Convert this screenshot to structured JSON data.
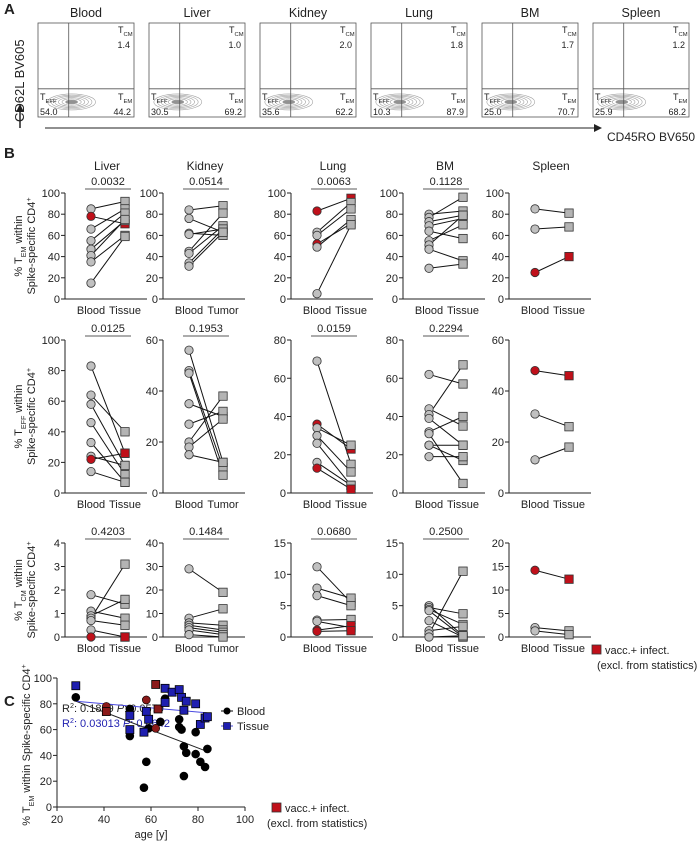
{
  "panel_labels": {
    "a": "A",
    "b": "B",
    "c": "C"
  },
  "colors": {
    "blood_point": "#c0c0c0",
    "tissue_point": "#b4b4b4",
    "excluded_point": "#c0101a",
    "blood_c": "#000000",
    "tissue_c": "#1f1fb0",
    "tissue_c_line": "#4a4ae0"
  },
  "panel_a": {
    "y_axis_label": "CD62L BV605",
    "x_axis_label": "CD45RO BV650",
    "quadrant_labels": {
      "tcm": [
        "T",
        "CM"
      ],
      "teff": [
        "T",
        "EFF"
      ],
      "tem": [
        "T",
        "EM"
      ]
    },
    "plots": [
      {
        "title": "Blood",
        "tcm": "1.4",
        "teff": "54.0",
        "tem": "44.2"
      },
      {
        "title": "Liver",
        "tcm": "1.0",
        "teff": "30.5",
        "tem": "69.2"
      },
      {
        "title": "Kidney",
        "tcm": "2.0",
        "teff": "35.6",
        "tem": "62.2"
      },
      {
        "title": "Lung",
        "tcm": "1.8",
        "teff": "10.3",
        "tem": "87.9"
      },
      {
        "title": "BM",
        "tcm": "1.7",
        "teff": "25.0",
        "tem": "70.7"
      },
      {
        "title": "Spleen",
        "tcm": "1.2",
        "teff": "25.9",
        "tem": "68.2"
      }
    ]
  },
  "panel_b": {
    "column_titles": [
      "Liver",
      "Kidney",
      "Lung",
      "BM",
      "Spleen"
    ],
    "row_labels": [
      {
        "pre": "% T",
        "sub": "EM",
        "post": " within",
        "line2": "Spike-specific CD4",
        "sup": "+"
      },
      {
        "pre": "% T",
        "sub": "EFF",
        "post": " within",
        "line2": "Spike-specific CD4",
        "sup": "+"
      },
      {
        "pre": "% T",
        "sub": "CM",
        "post": " within",
        "line2": "Spike-specific CD4",
        "sup": "+"
      }
    ],
    "legend": {
      "label": "vacc.+ infect.",
      "note": "(excl. from statistics)"
    }
  },
  "chart_data": [
    {
      "type": "paired-dot",
      "row": 0,
      "col": 0,
      "categories": [
        "Blood",
        "Tissue"
      ],
      "p_value": "0.0032",
      "ylim": [
        0,
        100
      ],
      "yticks": [
        0,
        20,
        40,
        60,
        80,
        100
      ],
      "pairs": [
        [
          85,
          92,
          false
        ],
        [
          78,
          71,
          true
        ],
        [
          66,
          85,
          false
        ],
        [
          55,
          81,
          false
        ],
        [
          47,
          74,
          false
        ],
        [
          41,
          75,
          false
        ],
        [
          35,
          60,
          false
        ],
        [
          15,
          59,
          false
        ]
      ]
    },
    {
      "type": "paired-dot",
      "row": 0,
      "col": 1,
      "categories": [
        "Blood",
        "Tumor"
      ],
      "p_value": "0.0514",
      "ylim": [
        0,
        100
      ],
      "yticks": [
        0,
        20,
        40,
        60,
        80,
        100
      ],
      "pairs": [
        [
          84,
          88,
          false
        ],
        [
          76,
          63,
          false
        ],
        [
          62,
          60,
          false
        ],
        [
          61,
          66,
          false
        ],
        [
          45,
          81,
          false
        ],
        [
          43,
          69,
          false
        ],
        [
          34,
          66,
          false
        ],
        [
          31,
          63,
          false
        ]
      ]
    },
    {
      "type": "paired-dot",
      "row": 0,
      "col": 2,
      "categories": [
        "Blood",
        "Tissue"
      ],
      "p_value": "0.0063",
      "ylim": [
        0,
        100
      ],
      "yticks": [
        0,
        20,
        40,
        60,
        80,
        100
      ],
      "pairs": [
        [
          83,
          95,
          true
        ],
        [
          63,
          91,
          false
        ],
        [
          60,
          85,
          false
        ],
        [
          52,
          71,
          true
        ],
        [
          49,
          75,
          false
        ],
        [
          5,
          70,
          false
        ]
      ]
    },
    {
      "type": "paired-dot",
      "row": 0,
      "col": 3,
      "categories": [
        "Blood",
        "Tissue"
      ],
      "p_value": "0.1128",
      "ylim": [
        0,
        100
      ],
      "yticks": [
        0,
        20,
        40,
        60,
        80,
        100
      ],
      "pairs": [
        [
          80,
          83,
          false
        ],
        [
          77,
          96,
          false
        ],
        [
          73,
          79,
          false
        ],
        [
          69,
          76,
          false
        ],
        [
          64,
          57,
          false
        ],
        [
          55,
          70,
          false
        ],
        [
          51,
          79,
          false
        ],
        [
          47,
          36,
          false
        ],
        [
          29,
          33,
          false
        ]
      ]
    },
    {
      "type": "paired-dot",
      "row": 0,
      "col": 4,
      "categories": [
        "Blood",
        "Tissue"
      ],
      "p_value": "",
      "ylim": [
        0,
        100
      ],
      "yticks": [
        0,
        20,
        40,
        60,
        80,
        100
      ],
      "pairs": [
        [
          85,
          81,
          false
        ],
        [
          66,
          68,
          false
        ],
        [
          25,
          40,
          true
        ]
      ]
    },
    {
      "type": "paired-dot",
      "row": 1,
      "col": 0,
      "categories": [
        "Blood",
        "Tissue"
      ],
      "p_value": "0.0125",
      "ylim": [
        0,
        100
      ],
      "yticks": [
        0,
        20,
        40,
        60,
        80,
        100
      ],
      "pairs": [
        [
          83,
          26,
          false
        ],
        [
          64,
          40,
          false
        ],
        [
          58,
          18,
          false
        ],
        [
          46,
          12,
          false
        ],
        [
          33,
          7,
          false
        ],
        [
          24,
          18,
          false
        ],
        [
          22,
          26,
          true
        ],
        [
          14,
          7,
          false
        ]
      ]
    },
    {
      "type": "paired-dot",
      "row": 1,
      "col": 1,
      "categories": [
        "Blood",
        "Tumor"
      ],
      "p_value": "0.1953",
      "ylim": [
        0,
        60
      ],
      "yticks": [
        0,
        20,
        40,
        60
      ],
      "pairs": [
        [
          56,
          12,
          false
        ],
        [
          48,
          10,
          false
        ],
        [
          47,
          7,
          false
        ],
        [
          35,
          30,
          false
        ],
        [
          27,
          32,
          false
        ],
        [
          20,
          38,
          false
        ],
        [
          18,
          29,
          false
        ],
        [
          15,
          12,
          false
        ]
      ]
    },
    {
      "type": "paired-dot",
      "row": 1,
      "col": 2,
      "categories": [
        "Blood",
        "Tissue"
      ],
      "p_value": "0.0159",
      "ylim": [
        0,
        80
      ],
      "yticks": [
        0,
        20,
        40,
        60,
        80
      ],
      "pairs": [
        [
          69,
          15,
          false
        ],
        [
          36,
          23,
          true
        ],
        [
          34,
          25,
          false
        ],
        [
          30,
          11,
          false
        ],
        [
          26,
          4,
          false
        ],
        [
          16,
          4,
          false
        ],
        [
          13,
          2,
          true
        ]
      ]
    },
    {
      "type": "paired-dot",
      "row": 1,
      "col": 3,
      "categories": [
        "Blood",
        "Tissue"
      ],
      "p_value": "0.2294",
      "ylim": [
        0,
        80
      ],
      "yticks": [
        0,
        20,
        40,
        60,
        80
      ],
      "pairs": [
        [
          62,
          57,
          false
        ],
        [
          44,
          35,
          false
        ],
        [
          41,
          67,
          false
        ],
        [
          39,
          25,
          false
        ],
        [
          32,
          40,
          false
        ],
        [
          31,
          5,
          false
        ],
        [
          25,
          25,
          false
        ],
        [
          25,
          17,
          false
        ],
        [
          19,
          19,
          false
        ]
      ]
    },
    {
      "type": "paired-dot",
      "row": 1,
      "col": 4,
      "categories": [
        "Blood",
        "Tissue"
      ],
      "p_value": "",
      "ylim": [
        0,
        60
      ],
      "yticks": [
        0,
        20,
        40,
        60
      ],
      "pairs": [
        [
          48,
          46,
          true
        ],
        [
          31,
          26,
          false
        ],
        [
          13,
          18,
          false
        ]
      ]
    },
    {
      "type": "paired-dot",
      "row": 2,
      "col": 0,
      "categories": [
        "Blood",
        "Tissue"
      ],
      "p_value": "0.4203",
      "ylim": [
        0,
        4
      ],
      "yticks": [
        0,
        1,
        2,
        3,
        4
      ],
      "pairs": [
        [
          1.8,
          1.4,
          false
        ],
        [
          1.1,
          0.8,
          false
        ],
        [
          0.9,
          1.6,
          false
        ],
        [
          0.8,
          3.1,
          false
        ],
        [
          0.7,
          0.5,
          false
        ],
        [
          0.3,
          0,
          false
        ],
        [
          0,
          0,
          true
        ]
      ]
    },
    {
      "type": "paired-dot",
      "row": 2,
      "col": 1,
      "categories": [
        "Blood",
        "Tumor"
      ],
      "p_value": "0.1484",
      "ylim": [
        0,
        40
      ],
      "yticks": [
        0,
        10,
        20,
        30,
        40
      ],
      "pairs": [
        [
          29,
          19,
          false
        ],
        [
          8,
          12,
          false
        ],
        [
          6,
          5,
          false
        ],
        [
          5,
          3,
          false
        ],
        [
          4,
          2,
          false
        ],
        [
          3,
          1,
          false
        ],
        [
          1,
          0,
          false
        ]
      ]
    },
    {
      "type": "paired-dot",
      "row": 2,
      "col": 2,
      "categories": [
        "Blood",
        "Tissue"
      ],
      "p_value": "0.0680",
      "ylim": [
        0,
        15
      ],
      "yticks": [
        0,
        5,
        10,
        15
      ],
      "pairs": [
        [
          11.2,
          5.5,
          false
        ],
        [
          7.8,
          6.2,
          false
        ],
        [
          6.6,
          5.0,
          false
        ],
        [
          2.7,
          2.8,
          false
        ],
        [
          2.5,
          1.5,
          false
        ],
        [
          1.1,
          1.8,
          true
        ],
        [
          0.9,
          1.0,
          true
        ]
      ]
    },
    {
      "type": "paired-dot",
      "row": 2,
      "col": 3,
      "categories": [
        "Blood",
        "Tissue"
      ],
      "p_value": "0.2500",
      "ylim": [
        0,
        15
      ],
      "yticks": [
        0,
        5,
        10,
        15
      ],
      "pairs": [
        [
          5.0,
          0.2,
          false
        ],
        [
          4.7,
          3.7,
          false
        ],
        [
          4.4,
          2.0,
          false
        ],
        [
          4.2,
          0,
          false
        ],
        [
          2.6,
          0,
          false
        ],
        [
          1.0,
          1.7,
          false
        ],
        [
          0.5,
          10.5,
          false
        ],
        [
          0,
          0.2,
          false
        ]
      ]
    },
    {
      "type": "paired-dot",
      "row": 2,
      "col": 4,
      "categories": [
        "Blood",
        "Tissue"
      ],
      "p_value": "",
      "ylim": [
        0,
        20
      ],
      "yticks": [
        0,
        5,
        10,
        15,
        20
      ],
      "pairs": [
        [
          14.2,
          12.3,
          true
        ],
        [
          2.0,
          1.3,
          false
        ],
        [
          1.3,
          0.5,
          false
        ]
      ]
    },
    {
      "type": "scatter",
      "panel": "C",
      "xlabel": "age [y]",
      "ylabel": {
        "pre": "% T",
        "sub": "EM",
        "post": " within Spike-specific CD4",
        "sup": "+"
      },
      "xlim": [
        20,
        100
      ],
      "ylim": [
        0,
        100
      ],
      "xticks": [
        20,
        40,
        60,
        80,
        100
      ],
      "yticks": [
        0,
        20,
        40,
        60,
        80,
        100
      ],
      "stats": [
        {
          "r2_label": "R",
          "r2_sup": "2",
          "r2": ": 0.1869",
          "p_label": "P",
          "p": ": 0.0570"
        },
        {
          "r2_label": "R",
          "r2_sup": "2",
          "r2": ": 0.03013",
          "p_label": "P",
          "p": ": 0.4642"
        }
      ],
      "series": [
        {
          "name": "Blood",
          "marker": "circle",
          "fit": [
            [
              28,
              82
            ],
            [
              84,
              43
            ]
          ],
          "points": [
            [
              28,
              85,
              false
            ],
            [
              41,
              78,
              true
            ],
            [
              51,
              55,
              false
            ],
            [
              51,
              76,
              false
            ],
            [
              57,
              15,
              false
            ],
            [
              58,
              35,
              false
            ],
            [
              58,
              83,
              true
            ],
            [
              59,
              61,
              false
            ],
            [
              62,
              61,
              true
            ],
            [
              64,
              66,
              false
            ],
            [
              66,
              84,
              false
            ],
            [
              72,
              62,
              false
            ],
            [
              72,
              68,
              false
            ],
            [
              73,
              60,
              false
            ],
            [
              74,
              24,
              false
            ],
            [
              74,
              47,
              false
            ],
            [
              75,
              42,
              false
            ],
            [
              79,
              41,
              false
            ],
            [
              79,
              58,
              false
            ],
            [
              81,
              35,
              false
            ],
            [
              83,
              31,
              false
            ],
            [
              84,
              45,
              false
            ]
          ]
        },
        {
          "name": "Tissue",
          "marker": "square",
          "fit": [
            [
              28,
              82
            ],
            [
              84,
              73
            ]
          ],
          "points": [
            [
              28,
              94,
              false
            ],
            [
              41,
              74,
              true
            ],
            [
              51,
              71,
              false
            ],
            [
              51,
              60,
              false
            ],
            [
              57,
              58,
              false
            ],
            [
              58,
              74,
              false
            ],
            [
              59,
              68,
              false
            ],
            [
              62,
              95,
              true
            ],
            [
              63,
              76,
              true
            ],
            [
              66,
              81,
              false
            ],
            [
              66,
              92,
              false
            ],
            [
              69,
              89,
              false
            ],
            [
              72,
              91,
              false
            ],
            [
              73,
              85,
              false
            ],
            [
              74,
              75,
              false
            ],
            [
              75,
              82,
              false
            ],
            [
              79,
              80,
              false
            ],
            [
              81,
              64,
              false
            ],
            [
              83,
              69,
              false
            ],
            [
              84,
              70,
              false
            ]
          ]
        }
      ],
      "legend": {
        "label": "vacc.+ infect.",
        "note": "(excl. from statistics)"
      }
    }
  ]
}
